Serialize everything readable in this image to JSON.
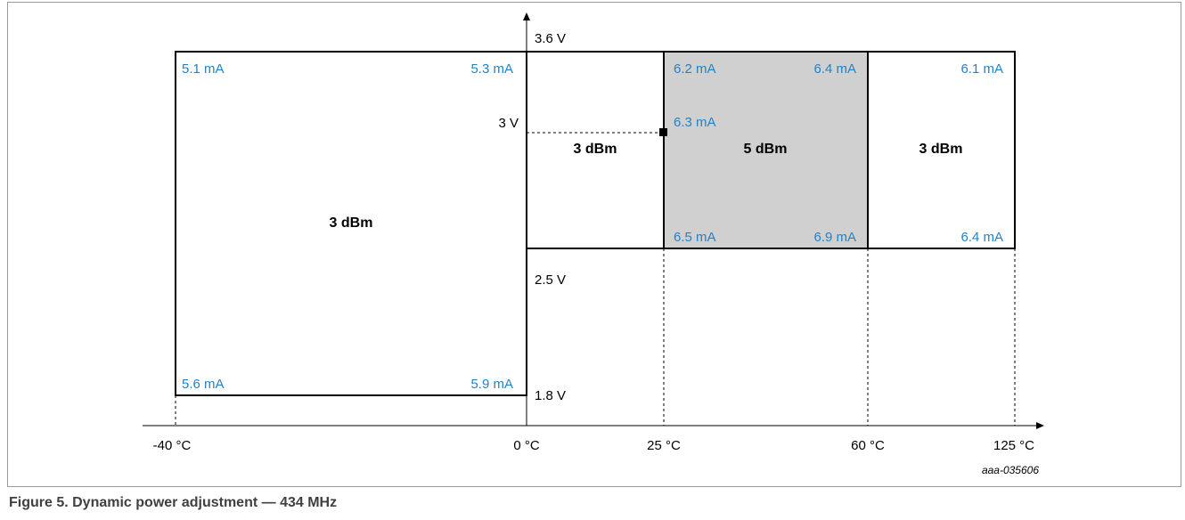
{
  "figure": {
    "caption": "Figure 5.  Dynamic power adjustment — 434 MHz",
    "reference_id": "aaa-035606"
  },
  "axes": {
    "x_ticks": [
      "-40 °C",
      "0 °C",
      "25 °C",
      "60 °C",
      "125 °C"
    ],
    "y_ticks": [
      "3.6 V",
      "3 V",
      "2.5 V",
      "1.8 V"
    ]
  },
  "regions": [
    {
      "power": "3 dBm",
      "currents": {
        "top_left": "5.1 mA",
        "top_right": "5.3 mA",
        "bottom_left": "5.6 mA",
        "bottom_right": "5.9 mA"
      }
    },
    {
      "power": "3 dBm",
      "currents": {}
    },
    {
      "power": "5 dBm",
      "currents": {
        "top_left": "6.2 mA",
        "top_right": "6.4 mA",
        "mid_left": "6.3 mA",
        "bottom_left": "6.5 mA",
        "bottom_right": "6.9 mA"
      },
      "shaded": true
    },
    {
      "power": "3 dBm",
      "currents": {
        "top_right": "6.1 mA",
        "bottom_right": "6.4 mA"
      }
    }
  ],
  "colors": {
    "current_label": "#2383c7",
    "shaded_region": "#d0d0d0",
    "frame": "#9a9a9a"
  }
}
